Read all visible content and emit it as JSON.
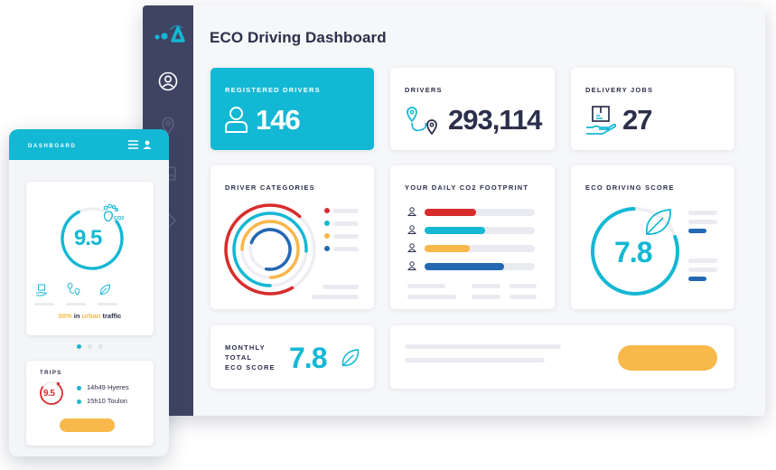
{
  "desktop": {
    "title": "ECO Driving Dashboard",
    "registered_drivers": {
      "label": "REGISTERED DRIVERS",
      "value": "146"
    },
    "drivers": {
      "label": "DRIVERS",
      "value": "293,114"
    },
    "delivery_jobs": {
      "label": "DELIVERY JOBS",
      "value": "27"
    },
    "driver_categories": {
      "label": "DRIVER CATEGORIES"
    },
    "co2_footprint": {
      "label": "YOUR DAILY CO2 FOOTPRINT",
      "bars": [
        {
          "color": "#d82c2c",
          "fraction": 0.47
        },
        {
          "color": "#13b8d4",
          "fraction": 0.55
        },
        {
          "color": "#f9b84a",
          "fraction": 0.41
        },
        {
          "color": "#2467b3",
          "fraction": 0.72
        }
      ]
    },
    "eco_score": {
      "label": "ECO DRIVING SCORE",
      "value": "7.8"
    },
    "monthly": {
      "label_line1": "MONTHLY",
      "label_line2": "TOTAL",
      "label_line3": "ECO SCORE",
      "value": "7.8"
    }
  },
  "mobile": {
    "header": "DASHBOARD",
    "score": "9.5",
    "co2_label": "CO2",
    "traffic_percent": "50%",
    "traffic_in": "in",
    "traffic_urban": "urban",
    "traffic_word": "traffic",
    "trips_label": "TRIPS",
    "trip_badge": "9.5",
    "trips": [
      {
        "text": "14h49 Hyeres"
      },
      {
        "text": "15h10 Toulon"
      }
    ]
  },
  "colors": {
    "accent": "#13b8d4",
    "sidebar": "#3f4463",
    "orange": "#f9b84a",
    "red": "#d82c2c",
    "blue": "#2467b3",
    "text": "#2b2f4a"
  }
}
